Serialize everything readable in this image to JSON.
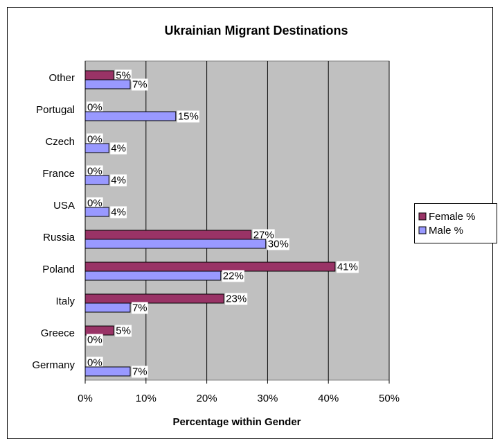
{
  "chart_data": {
    "type": "hbar",
    "title": "Ukrainian Migrant Destinations",
    "xlabel": "Percentage within Gender",
    "categories": [
      "Other",
      "Portugal",
      "Czech",
      "France",
      "USA",
      "Russia",
      "Poland",
      "Italy",
      "Greece",
      "Germany"
    ],
    "series": [
      {
        "name": "Female %",
        "color": "#993366",
        "values": [
          4.7,
          0,
          0,
          0,
          0,
          27.3,
          41.1,
          22.8,
          4.7,
          0
        ],
        "value_labels": [
          "5%",
          "0%",
          "0%",
          "0%",
          "0%",
          "27%",
          "41%",
          "23%",
          "5%",
          "0%"
        ]
      },
      {
        "name": "Male %",
        "color": "#9999ff",
        "values": [
          7.4,
          14.9,
          3.9,
          3.9,
          3.9,
          29.7,
          22.3,
          7.4,
          0,
          7.4
        ],
        "value_labels": [
          "7%",
          "15%",
          "4%",
          "4%",
          "4%",
          "30%",
          "22%",
          "7%",
          "0%",
          "7%"
        ]
      }
    ],
    "xlim": [
      0,
      50
    ],
    "xticks": [
      {
        "value": 0,
        "label": "0%"
      },
      {
        "value": 10,
        "label": "10%"
      },
      {
        "value": 20,
        "label": "20%"
      },
      {
        "value": 30,
        "label": "30%"
      },
      {
        "value": 40,
        "label": "40%"
      },
      {
        "value": 50,
        "label": "50%"
      }
    ],
    "grid": true,
    "legend": "right"
  }
}
